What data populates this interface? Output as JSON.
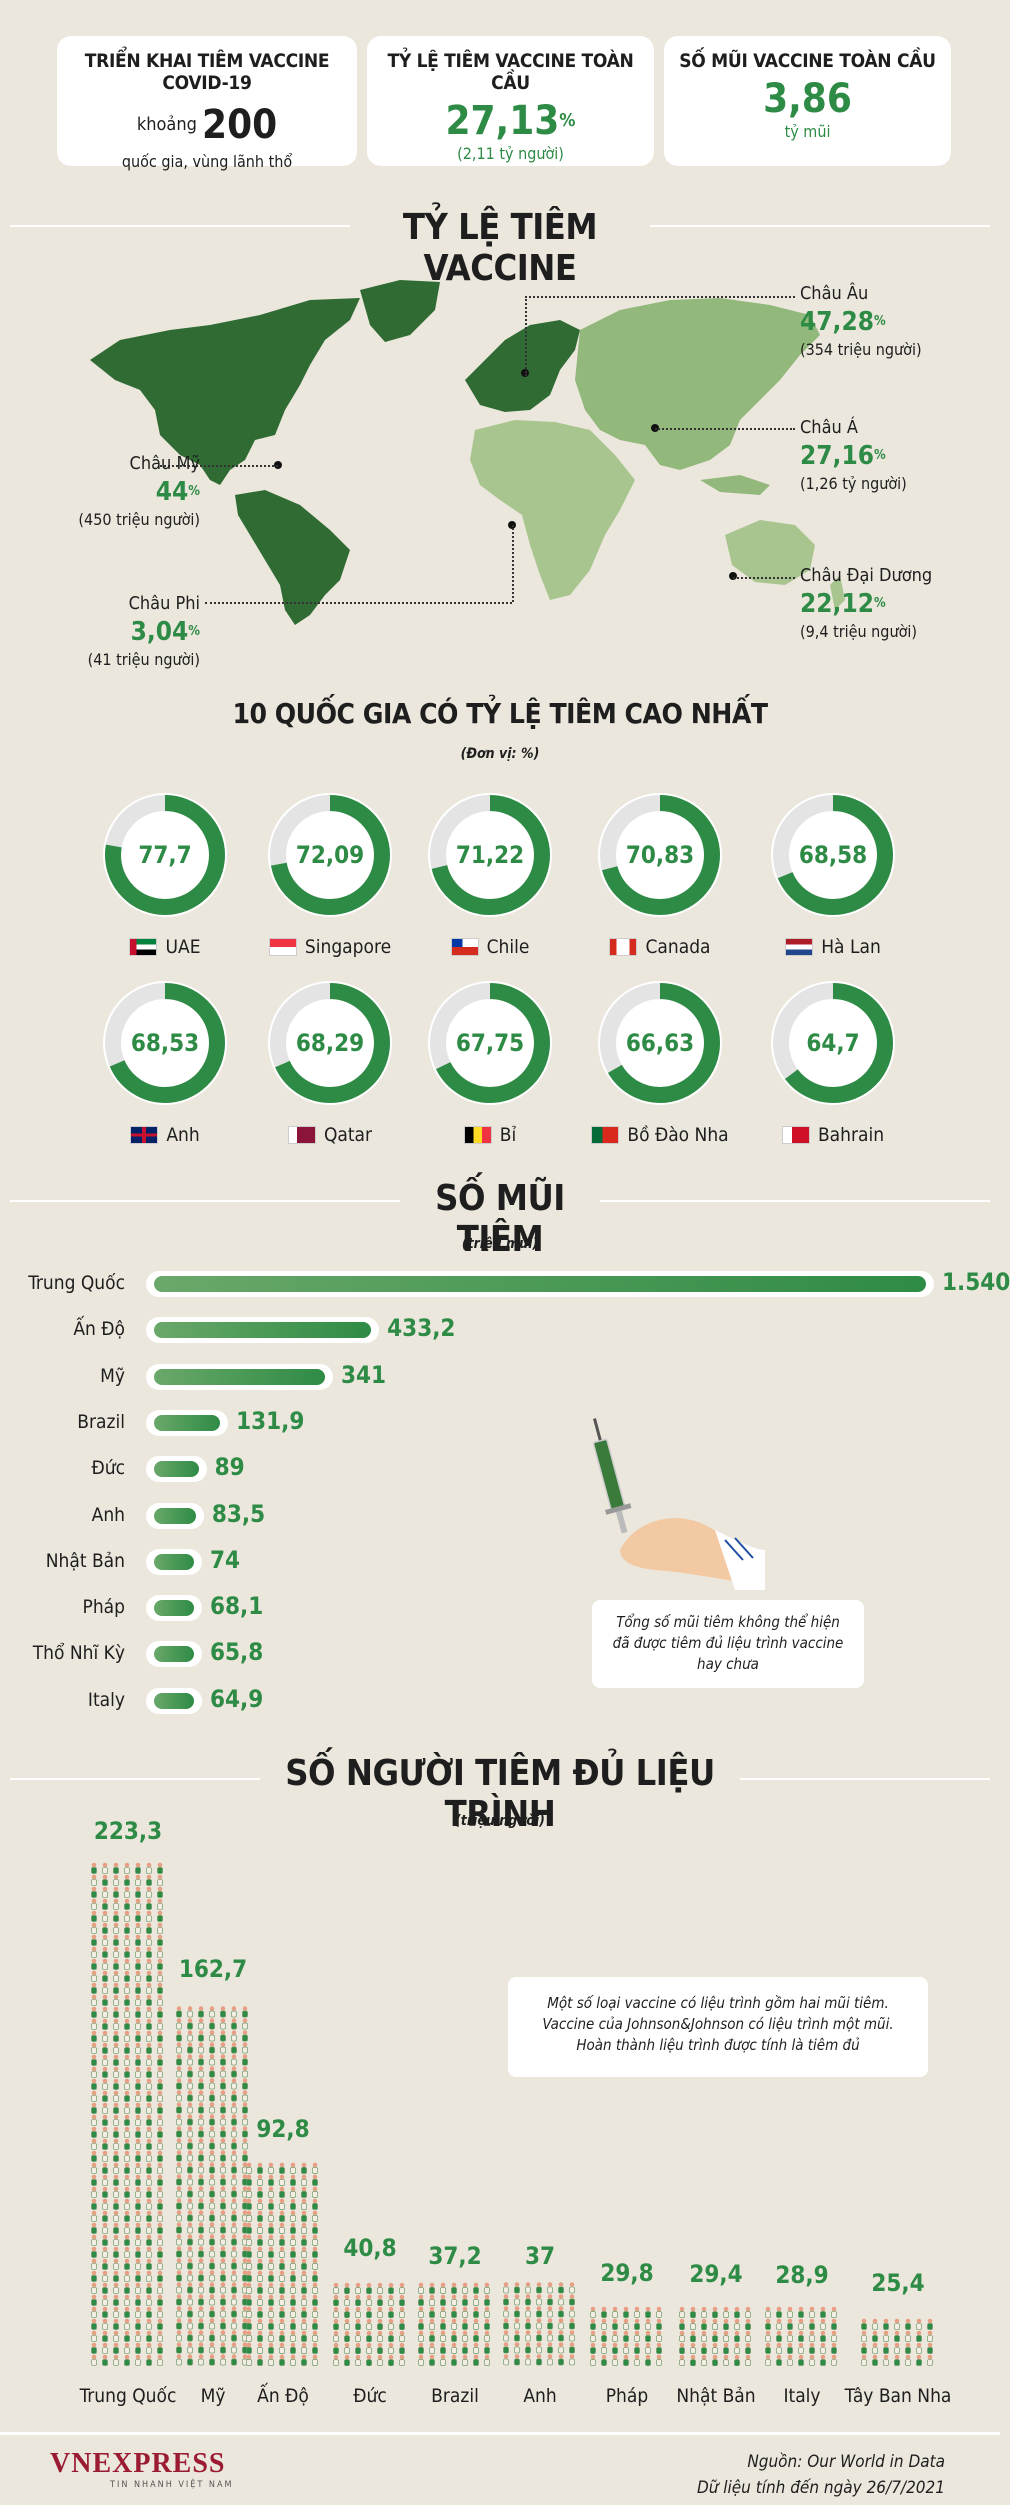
{
  "stats": [
    {
      "title": "TRIỂN KHAI TIÊM VACCINE COVID-19",
      "prefix": "khoảng",
      "value": "200",
      "sub": "quốc gia, vùng lãnh thổ"
    },
    {
      "title": "TỶ LỆ TIÊM VACCINE TOÀN CẦU",
      "value": "27,13",
      "sup": "%",
      "sub": "(2,11 tỷ người)"
    },
    {
      "title": "SỐ MŨI VACCINE TOÀN CẦU",
      "value": "3,86",
      "sub": "tỷ mũi"
    }
  ],
  "section1": {
    "title": "TỶ LỆ TIÊM VACCINE"
  },
  "regions": [
    {
      "name": "Châu Âu",
      "pct": "47,28",
      "people": "(354 triệu người)"
    },
    {
      "name": "Châu Mỹ",
      "pct": "44",
      "people": "(450 triệu người)"
    },
    {
      "name": "Châu Á",
      "pct": "27,16",
      "people": "(1,26 tỷ người)"
    },
    {
      "name": "Châu Đại Dương",
      "pct": "22,12",
      "people": "(9,4 triệu người)"
    },
    {
      "name": "Châu Phi",
      "pct": "3,04",
      "people": "(41 triệu người)"
    }
  ],
  "pct_sign": "%",
  "top10": {
    "title": "10 QUỐC GIA CÓ TỶ LỆ TIÊM CAO NHẤT",
    "unit": "(Đơn vị: %)"
  },
  "section2": {
    "title": "SỐ MŨI TIÊM",
    "unit": "(triệu mũi)",
    "note": [
      "Tổng số mũi tiêm không thể hiện",
      "đã được tiêm đủ liệu trình vaccine",
      "hay chưa"
    ]
  },
  "section3": {
    "title": "SỐ NGƯỜI TIÊM ĐỦ LIỆU TRÌNH",
    "unit": "(triệu người)",
    "note": [
      "Một số loại vaccine có liệu trình gồm hai mũi tiêm.",
      "Vaccine của Johnson&Johnson có liệu trình một mũi.",
      "Hoàn thành liệu trình được tính là tiêm đủ"
    ]
  },
  "footer": {
    "logo": "VNEXPRESS",
    "logo_sub": "TIN NHANH VIỆT NAM",
    "source": "Nguồn: Our World in Data",
    "date": "Dữ liệu tính đến ngày 26/7/2021"
  },
  "colors": {
    "accent": "#2e8b45",
    "background": "#ebe7dd",
    "map_dark": "#2f6b32",
    "map_mid": "#4f8a45",
    "map_light": "#93b87c",
    "map_lighter": "#a9c58f"
  },
  "chart_data": [
    {
      "type": "pie",
      "title": "10 QUỐC GIA CÓ TỶ LỆ TIÊM CAO NHẤT",
      "unit": "%",
      "categories": [
        "UAE",
        "Singapore",
        "Chile",
        "Canada",
        "Hà Lan",
        "Anh",
        "Qatar",
        "Bỉ",
        "Bồ Đào Nha",
        "Bahrain"
      ],
      "labels": [
        "77,7",
        "72,09",
        "71,22",
        "70,83",
        "68,58",
        "68,53",
        "68,29",
        "67,75",
        "66,63",
        "64,7"
      ],
      "values": [
        77.7,
        72.09,
        71.22,
        70.83,
        68.58,
        68.53,
        68.29,
        67.75,
        66.63,
        64.7
      ]
    },
    {
      "type": "bar",
      "title": "SỐ MŨI TIÊM",
      "unit": "triệu mũi",
      "categories": [
        "Trung Quốc",
        "Ấn Độ",
        "Mỹ",
        "Brazil",
        "Đức",
        "Anh",
        "Nhật Bản",
        "Pháp",
        "Thổ Nhĩ Kỳ",
        "Italy"
      ],
      "labels": [
        "1.540",
        "433,2",
        "341",
        "131,9",
        "89",
        "83,5",
        "74",
        "68,1",
        "65,8",
        "64,9"
      ],
      "values": [
        1540,
        433.2,
        341,
        131.9,
        89,
        83.5,
        74,
        68.1,
        65.8,
        64.9
      ]
    },
    {
      "type": "bar",
      "title": "SỐ NGƯỜI TIÊM ĐỦ LIỆU TRÌNH",
      "unit": "triệu người",
      "categories": [
        "Trung Quốc",
        "Mỹ",
        "Ấn Độ",
        "Đức",
        "Brazil",
        "Anh",
        "Pháp",
        "Nhật Bản",
        "Italy",
        "Tây Ban Nha"
      ],
      "labels": [
        "223,3",
        "162,7",
        "92,8",
        "40,8",
        "37,2",
        "37",
        "29,8",
        "29,4",
        "28,9",
        "25,4"
      ],
      "values": [
        223.3,
        162.7,
        92.8,
        40.8,
        37.2,
        37,
        29.8,
        29.4,
        28.9,
        25.4
      ]
    }
  ]
}
